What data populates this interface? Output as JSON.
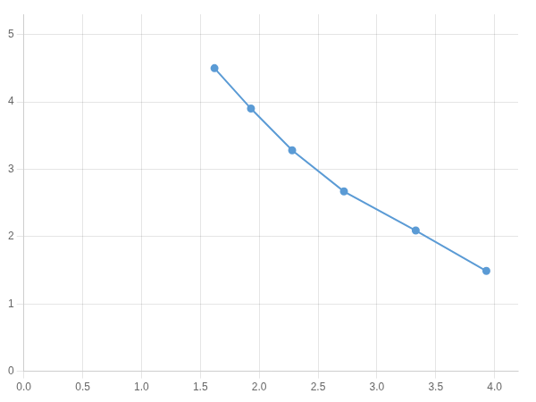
{
  "chart_data": {
    "type": "line",
    "x": [
      1.62,
      1.93,
      2.28,
      2.72,
      3.33,
      3.93
    ],
    "values": [
      4.5,
      3.9,
      3.28,
      2.67,
      2.09,
      1.49
    ],
    "color": "#5b9bd5",
    "marker": "circle",
    "xlim": [
      0.0,
      4.2
    ],
    "ylim": [
      0,
      5.3
    ],
    "xticks": [
      {
        "value": 0.0,
        "label": "0.0"
      },
      0.5,
      {
        "value": 1.0,
        "label": "1.0"
      },
      1.5,
      {
        "value": 2.0,
        "label": "2.0"
      },
      2.5,
      {
        "value": 3.0,
        "label": "3.0"
      },
      3.5,
      {
        "value": 4.0,
        "label": "4.0"
      }
    ],
    "yticks": [
      0,
      1,
      2,
      3,
      4,
      5
    ],
    "grid": true
  }
}
